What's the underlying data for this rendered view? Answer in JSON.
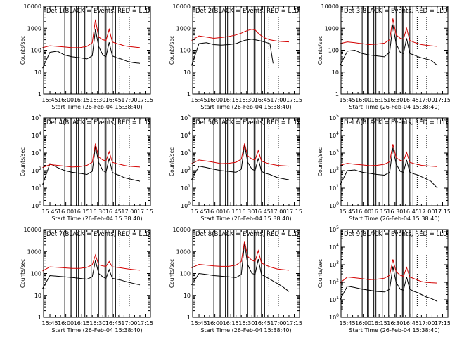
{
  "figure": {
    "xlabel": "Start Time (26-Feb-04 15:38:40)",
    "ylabel": "Counts/sec",
    "series_colors": {
      "events": "#000000",
      "lld": "#d40000"
    },
    "x_tick_labels": [
      "15:45",
      "16:00",
      "16:15",
      "16:30",
      "16:45",
      "17:00",
      "17:15"
    ]
  },
  "chart_data": [
    {
      "type": "line",
      "title": "Det 1(BLACK = Events, RED = LLD",
      "xlabel": "Start Time (26-Feb-04 15:38:40)",
      "ylabel": "Counts/sec",
      "log_y": true,
      "ylim": [
        1,
        10000
      ],
      "tick_style": "plain",
      "y_tick_labels": [
        "1",
        "10",
        "100",
        "1000",
        "10000"
      ],
      "x_minutes_since_start": [
        0,
        7,
        14,
        21,
        28,
        35,
        42,
        47,
        50,
        53,
        57,
        60,
        63,
        66,
        70,
        74,
        77,
        81,
        86,
        92
      ],
      "series": [
        {
          "color": "#000000",
          "values": [
            15,
            80,
            90,
            60,
            50,
            45,
            40,
            55,
            900,
            150,
            60,
            50,
            230,
            55,
            45,
            40,
            35,
            30,
            27,
            25
          ]
        },
        {
          "color": "#d40000",
          "values": [
            130,
            160,
            150,
            140,
            130,
            130,
            150,
            220,
            2500,
            400,
            300,
            280,
            900,
            240,
            200,
            180,
            160,
            150,
            140,
            130
          ]
        }
      ],
      "vertical_lines_min": [
        21,
        26,
        27,
        32,
        34,
        40,
        46,
        53,
        59,
        60,
        66,
        69
      ],
      "dotted_lines_min": [
        73,
        82
      ]
    },
    {
      "type": "line",
      "title": "Det 2(BLACK = Events, RED = LLD",
      "xlabel": "Start Time (26-Feb-04 15:38:40)",
      "ylabel": "Counts/sec",
      "log_y": true,
      "ylim": [
        1,
        10000
      ],
      "tick_style": "plain",
      "y_tick_labels": [
        "1",
        "10",
        "100",
        "1000",
        "10000"
      ],
      "x_minutes_since_start": [
        0,
        7,
        14,
        21,
        28,
        35,
        42,
        47,
        50,
        53,
        57,
        60,
        63,
        66,
        70,
        74,
        77,
        81,
        86,
        92
      ],
      "series": [
        {
          "color": "#000000",
          "values": [
            20,
            200,
            220,
            180,
            170,
            180,
            200,
            250,
            280,
            300,
            320,
            300,
            280,
            260,
            230,
            200,
            25,
            0,
            0,
            0
          ]
        },
        {
          "color": "#d40000",
          "values": [
            280,
            450,
            400,
            350,
            380,
            420,
            500,
            600,
            700,
            800,
            900,
            850,
            600,
            450,
            350,
            300,
            280,
            260,
            250,
            240
          ]
        }
      ],
      "vertical_lines_min": [
        21,
        26,
        27,
        32,
        34,
        40,
        46,
        53,
        59,
        60,
        66,
        69
      ],
      "dotted_lines_min": [
        73,
        82
      ]
    },
    {
      "type": "line",
      "title": "Det 3(BLACK = Events, RED = LLD",
      "xlabel": "Start Time (26-Feb-04 15:38:40)",
      "ylabel": "Counts/sec",
      "log_y": true,
      "ylim": [
        1,
        10000
      ],
      "tick_style": "plain",
      "y_tick_labels": [
        "1",
        "10",
        "100",
        "1000",
        "10000"
      ],
      "x_minutes_since_start": [
        0,
        7,
        14,
        21,
        28,
        35,
        42,
        47,
        50,
        53,
        57,
        60,
        63,
        66,
        70,
        74,
        77,
        81,
        86,
        92
      ],
      "series": [
        {
          "color": "#000000",
          "values": [
            20,
            90,
            100,
            70,
            60,
            55,
            50,
            80,
            1500,
            200,
            80,
            70,
            350,
            70,
            60,
            50,
            45,
            40,
            35,
            20
          ]
        },
        {
          "color": "#d40000",
          "values": [
            200,
            240,
            220,
            200,
            180,
            190,
            210,
            300,
            2800,
            500,
            350,
            320,
            1000,
            280,
            230,
            200,
            180,
            170,
            160,
            150
          ]
        }
      ],
      "vertical_lines_min": [
        21,
        26,
        27,
        32,
        34,
        40,
        46,
        53,
        59,
        60,
        66,
        69
      ],
      "dotted_lines_min": [
        73,
        82
      ]
    },
    {
      "type": "line",
      "title": "Det 4(BLACK = Events, RED = LLD",
      "xlabel": "Start Time (26-Feb-04 15:38:40)",
      "ylabel": "Counts/sec",
      "log_y": true,
      "ylim": [
        1,
        100000
      ],
      "tick_style": "power",
      "y_tick_labels": [
        "10^0",
        "10^1",
        "10^2",
        "10^3",
        "10^4",
        "10^5"
      ],
      "x_minutes_since_start": [
        0,
        7,
        14,
        21,
        28,
        35,
        42,
        47,
        50,
        53,
        57,
        60,
        63,
        66,
        70,
        74,
        77,
        81,
        86,
        92
      ],
      "series": [
        {
          "color": "#000000",
          "values": [
            15,
            250,
            150,
            100,
            80,
            70,
            60,
            90,
            2500,
            300,
            100,
            80,
            500,
            80,
            60,
            50,
            40,
            35,
            30,
            25
          ]
        },
        {
          "color": "#d40000",
          "values": [
            150,
            220,
            200,
            180,
            160,
            170,
            200,
            300,
            3500,
            600,
            400,
            350,
            1200,
            300,
            250,
            220,
            200,
            180,
            170,
            160
          ]
        }
      ],
      "vertical_lines_min": [
        21,
        26,
        27,
        32,
        34,
        40,
        46,
        53,
        59,
        60,
        66,
        69
      ],
      "dotted_lines_min": [
        73,
        82
      ]
    },
    {
      "type": "line",
      "title": "Det 5(BLACK = Events, RED = LLD",
      "xlabel": "Start Time (26-Feb-04 15:38:40)",
      "ylabel": "Counts/sec",
      "log_y": true,
      "ylim": [
        1,
        100000
      ],
      "tick_style": "power",
      "y_tick_labels": [
        "10^0",
        "10^1",
        "10^2",
        "10^3",
        "10^4",
        "10^5"
      ],
      "x_minutes_since_start": [
        0,
        7,
        14,
        21,
        28,
        35,
        42,
        47,
        50,
        53,
        57,
        60,
        63,
        66,
        70,
        74,
        77,
        81,
        86,
        92
      ],
      "series": [
        {
          "color": "#000000",
          "values": [
            30,
            180,
            150,
            120,
            100,
            90,
            80,
            120,
            3000,
            300,
            120,
            100,
            500,
            90,
            70,
            60,
            50,
            40,
            35,
            30
          ]
        },
        {
          "color": "#d40000",
          "values": [
            250,
            400,
            350,
            300,
            250,
            260,
            300,
            450,
            3500,
            700,
            450,
            400,
            1400,
            350,
            280,
            240,
            220,
            200,
            190,
            180
          ]
        }
      ],
      "vertical_lines_min": [
        21,
        26,
        27,
        32,
        34,
        40,
        46,
        53,
        59,
        60,
        66,
        69
      ],
      "dotted_lines_min": [
        73,
        82
      ]
    },
    {
      "type": "line",
      "title": "Det 6(BLACK = Events, RED = LLD",
      "xlabel": "Start Time (26-Feb-04 15:38:40)",
      "ylabel": "Counts/sec",
      "log_y": true,
      "ylim": [
        1,
        100000
      ],
      "tick_style": "power",
      "y_tick_labels": [
        "10^0",
        "10^1",
        "10^2",
        "10^3",
        "10^4",
        "10^5"
      ],
      "x_minutes_since_start": [
        0,
        7,
        14,
        21,
        28,
        35,
        42,
        47,
        50,
        53,
        57,
        60,
        63,
        66,
        70,
        74,
        77,
        81,
        86,
        92
      ],
      "series": [
        {
          "color": "#000000",
          "values": [
            15,
            100,
            110,
            80,
            70,
            60,
            55,
            80,
            2000,
            250,
            90,
            80,
            400,
            80,
            65,
            55,
            45,
            35,
            25,
            10
          ]
        },
        {
          "color": "#d40000",
          "values": [
            200,
            260,
            230,
            210,
            190,
            200,
            230,
            320,
            3200,
            550,
            380,
            340,
            1100,
            300,
            250,
            220,
            200,
            190,
            180,
            170
          ]
        }
      ],
      "vertical_lines_min": [
        21,
        26,
        27,
        32,
        34,
        40,
        46,
        53,
        59,
        60,
        66,
        69
      ],
      "dotted_lines_min": [
        73,
        82
      ]
    },
    {
      "type": "line",
      "title": "Det 7(BLACK = Events, RED = LLD",
      "xlabel": "Start Time (26-Feb-04 15:38:40)",
      "ylabel": "Counts/sec",
      "log_y": true,
      "ylim": [
        1,
        10000
      ],
      "tick_style": "plain",
      "y_tick_labels": [
        "1",
        "10",
        "100",
        "1000",
        "10000"
      ],
      "x_minutes_since_start": [
        0,
        7,
        14,
        21,
        28,
        35,
        42,
        47,
        50,
        53,
        57,
        60,
        63,
        66,
        70,
        74,
        77,
        81,
        86,
        92
      ],
      "series": [
        {
          "color": "#000000",
          "values": [
            20,
            80,
            75,
            70,
            65,
            60,
            55,
            70,
            400,
            100,
            70,
            60,
            150,
            60,
            55,
            50,
            45,
            40,
            35,
            30
          ]
        },
        {
          "color": "#d40000",
          "values": [
            130,
            200,
            190,
            180,
            170,
            170,
            190,
            250,
            700,
            250,
            220,
            210,
            350,
            200,
            190,
            180,
            170,
            160,
            150,
            140
          ]
        }
      ],
      "vertical_lines_min": [
        21,
        26,
        27,
        32,
        34,
        40,
        46,
        53,
        59,
        60,
        66,
        69
      ],
      "dotted_lines_min": [
        73,
        82
      ]
    },
    {
      "type": "line",
      "title": "Det 8(BLACK = Events, RED = LLD",
      "xlabel": "Start Time (26-Feb-04 15:38:40)",
      "ylabel": "Counts/sec",
      "log_y": true,
      "ylim": [
        1,
        10000
      ],
      "tick_style": "plain",
      "y_tick_labels": [
        "1",
        "10",
        "100",
        "1000",
        "10000"
      ],
      "x_minutes_since_start": [
        0,
        7,
        14,
        21,
        28,
        35,
        42,
        47,
        50,
        53,
        57,
        60,
        63,
        66,
        70,
        74,
        77,
        81,
        86,
        92
      ],
      "series": [
        {
          "color": "#000000",
          "values": [
            30,
            100,
            90,
            80,
            75,
            70,
            65,
            90,
            2500,
            250,
            100,
            90,
            450,
            90,
            70,
            55,
            45,
            35,
            25,
            15
          ]
        },
        {
          "color": "#d40000",
          "values": [
            180,
            260,
            240,
            220,
            210,
            210,
            240,
            350,
            3000,
            600,
            400,
            350,
            1100,
            300,
            240,
            200,
            180,
            160,
            150,
            140
          ]
        }
      ],
      "vertical_lines_min": [
        21,
        26,
        27,
        32,
        34,
        40,
        46,
        53,
        59,
        60,
        66,
        69
      ],
      "dotted_lines_min": [
        73,
        82
      ]
    },
    {
      "type": "line",
      "title": "Det 9(BLACK = Events, RED = LLD",
      "xlabel": "Start Time (26-Feb-04 15:38:40)",
      "ylabel": "Counts/sec",
      "log_y": true,
      "ylim": [
        1,
        100000
      ],
      "tick_style": "power",
      "y_tick_labels": [
        "10^0",
        "10^1",
        "10^2",
        "10^3",
        "10^4",
        "10^5"
      ],
      "x_minutes_since_start": [
        0,
        7,
        14,
        21,
        28,
        35,
        42,
        47,
        50,
        53,
        57,
        60,
        63,
        66,
        70,
        74,
        77,
        81,
        86,
        92
      ],
      "series": [
        {
          "color": "#000000",
          "values": [
            10,
            60,
            50,
            40,
            35,
            30,
            28,
            40,
            800,
            100,
            40,
            35,
            200,
            40,
            30,
            25,
            20,
            15,
            12,
            8
          ]
        },
        {
          "color": "#d40000",
          "values": [
            90,
            200,
            180,
            160,
            140,
            150,
            170,
            250,
            2000,
            400,
            250,
            220,
            700,
            200,
            160,
            130,
            110,
            100,
            95,
            90
          ]
        }
      ],
      "vertical_lines_min": [
        21,
        26,
        27,
        32,
        34,
        40,
        46,
        53,
        59,
        60,
        66,
        69
      ],
      "dotted_lines_min": [
        73,
        82
      ]
    }
  ]
}
